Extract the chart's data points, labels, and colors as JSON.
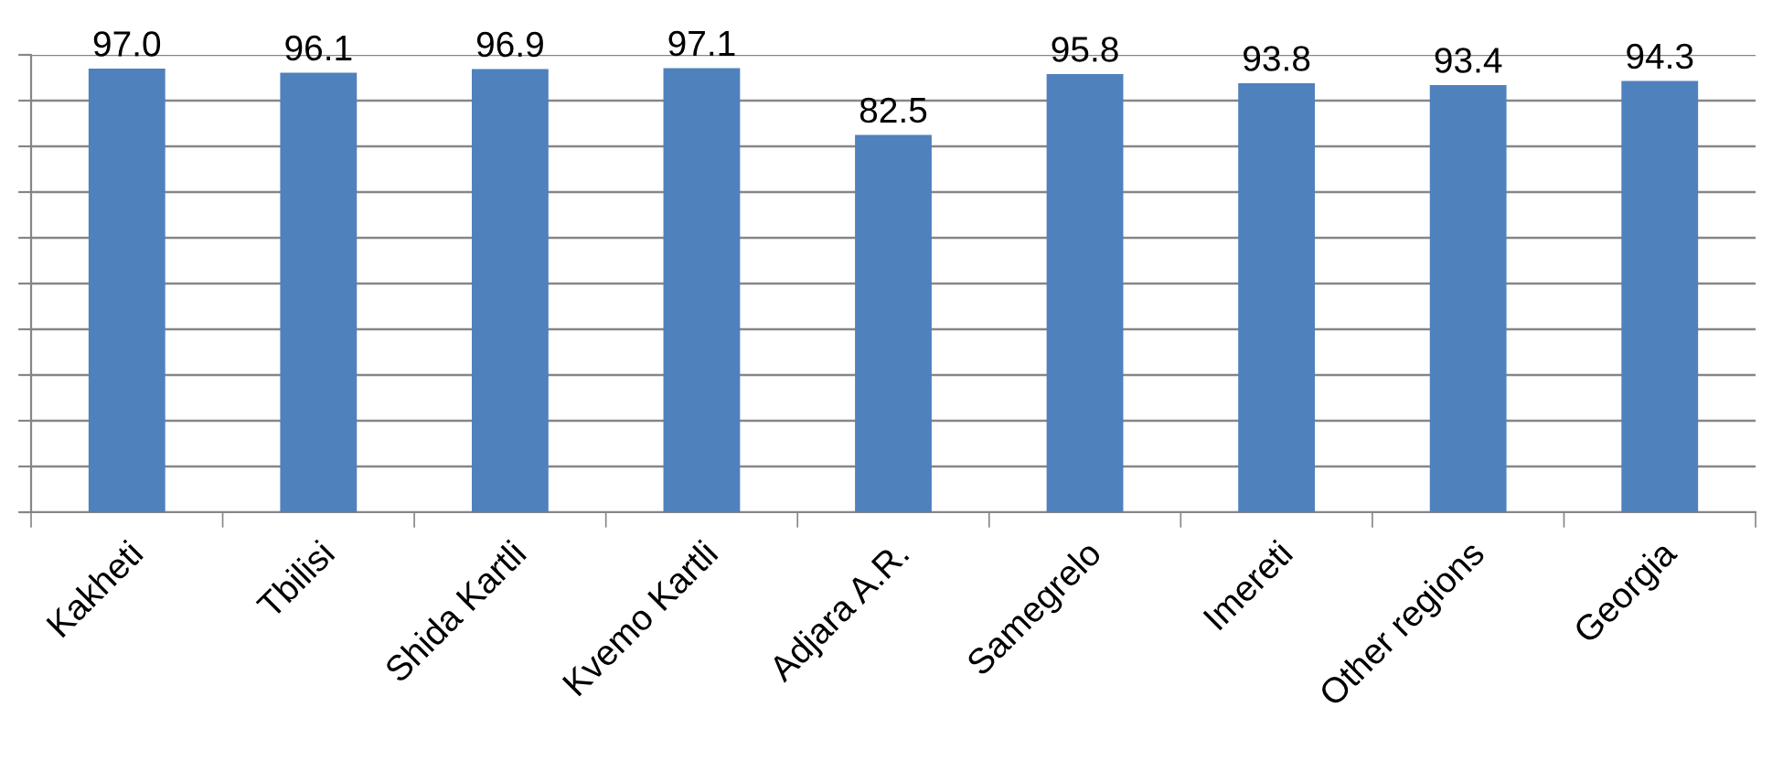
{
  "chart_data": {
    "type": "bar",
    "categories": [
      "Kakheti",
      "Tbilisi",
      "Shida Kartli",
      "Kvemo Kartli",
      "Adjara A.R.",
      "Samegrelo",
      "Imereti",
      "Other regions",
      "Georgia"
    ],
    "values": [
      97.0,
      96.1,
      96.9,
      97.1,
      82.5,
      95.8,
      93.8,
      93.4,
      94.3
    ],
    "value_labels": [
      "97.0",
      "96.1",
      "96.9",
      "97.1",
      "82.5",
      "95.8",
      "93.8",
      "93.4",
      "94.3"
    ],
    "color": "#4f81bd",
    "ylim": [
      0,
      100
    ],
    "yticks": [
      {
        "value": 0,
        "label": null
      },
      {
        "value": 10,
        "label": null
      },
      {
        "value": 20,
        "label": null
      },
      {
        "value": 30,
        "label": null
      },
      {
        "value": 40,
        "label": null
      },
      {
        "value": 50,
        "label": null
      },
      {
        "value": 60,
        "label": null
      },
      {
        "value": 70,
        "label": null
      },
      {
        "value": 80,
        "label": null
      },
      {
        "value": 90,
        "label": null
      },
      {
        "value": 100,
        "label": null
      }
    ],
    "grid": "y",
    "tick_labels": "x"
  }
}
